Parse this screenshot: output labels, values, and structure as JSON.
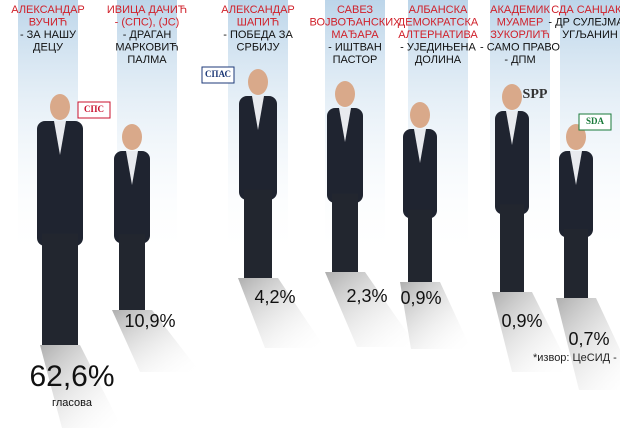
{
  "header": {
    "source": "*извор: ЦеСИД -"
  },
  "candidates": [
    {
      "title": [
        "АЛЕКСАНДАР",
        "ВУЧИЋ"
      ],
      "subtitle": [
        "- ЗА НАШУ",
        "ДЕЦУ"
      ],
      "result": "62,6%",
      "note": "гласова"
    },
    {
      "title": [
        "ИВИЦА ДАЧИЋ",
        "- (СПС), (ЈС)"
      ],
      "subtitle": [
        "- ДРАГАН",
        "МАРКОВИЋ",
        "ПАЛМА"
      ],
      "result": "10,9%",
      "logo": "СПС"
    },
    {
      "title": [
        "АЛЕКСАНДАР",
        "ШАПИЋ"
      ],
      "subtitle": [
        "- ПОБЕДА ЗА",
        "СРБИЈУ"
      ],
      "result": "4,2%",
      "logo": "СПАС"
    },
    {
      "title": [
        "САВЕЗ",
        "ВОЈВОЂАНСКИХ",
        "МАЂАРА"
      ],
      "subtitle": [
        "- ИШТВАН",
        "ПАСТОР"
      ],
      "result": "2,3%"
    },
    {
      "title": [
        "АЛБАНСКА",
        "ДЕМОКРАТСКА",
        "АЛТЕРНАТИВА"
      ],
      "subtitle": [
        "- УЈЕДИЊЕНА",
        "ДОЛИНА"
      ],
      "result": "0,9%"
    },
    {
      "title": [
        "АКАДЕМИК",
        "МУАМЕР",
        "ЗУКОРЛИЋ"
      ],
      "subtitle": [
        "- САМО ПРАВО",
        "- ДПМ"
      ],
      "result": "0,9%",
      "logo": "SPP"
    },
    {
      "title": [
        "СДА САНЏАКА"
      ],
      "subtitle": [
        "- ДР СУЛЕЈМАН",
        "УГЉАНИН"
      ],
      "result": "0,7%",
      "logo": "SDA"
    }
  ]
}
